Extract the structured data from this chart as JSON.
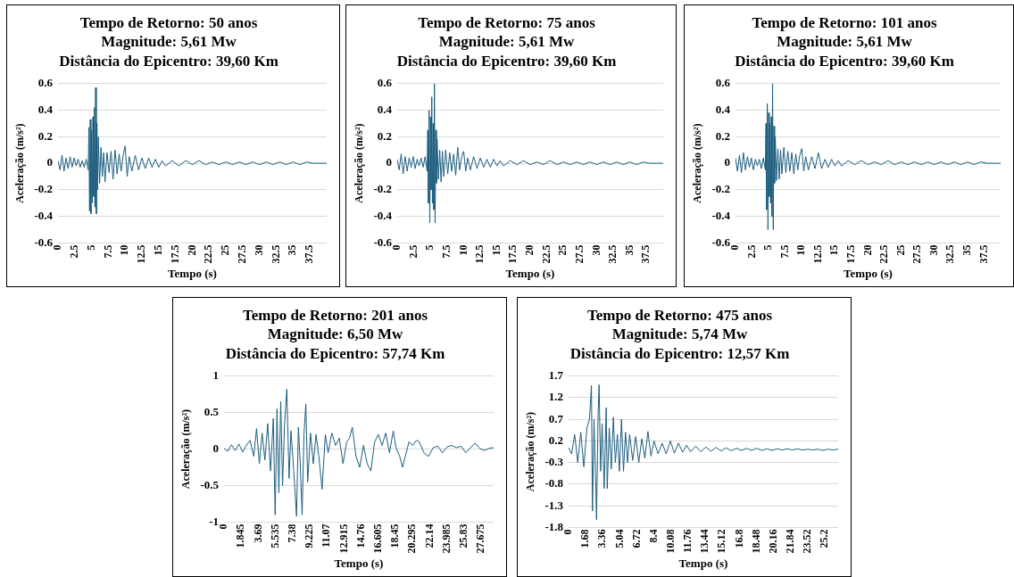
{
  "chart_data": [
    {
      "type": "line",
      "title": "Tempo de Retorno: 50 anos\nMagnitude: 5,61 Mw\nDistância do Epicentro: 39,60 Km",
      "xlabel": "Tempo (s)",
      "ylabel": "Aceleração (m/s²)",
      "xlim": [
        0,
        40
      ],
      "xticks": [
        0,
        2.5,
        5,
        7.5,
        10,
        12.5,
        15,
        17.5,
        20,
        22.5,
        25,
        27.5,
        30,
        32.5,
        35,
        37.5
      ],
      "ylim": [
        -0.6,
        0.6
      ],
      "yticks": [
        -0.6,
        -0.4,
        -0.2,
        0,
        0.2,
        0.4,
        0.6
      ],
      "grid": "y",
      "legend": false,
      "series": [
        {
          "color": "#1d5e7e",
          "x": [
            0,
            0.3,
            0.6,
            0.9,
            1.2,
            1.5,
            1.8,
            2.1,
            2.4,
            2.7,
            3,
            3.3,
            3.6,
            3.9,
            4.2,
            4.5,
            4.6,
            4.7,
            4.8,
            4.9,
            5,
            5.1,
            5.2,
            5.3,
            5.4,
            5.5,
            5.6,
            5.7,
            5.8,
            5.9,
            6,
            6.2,
            6.4,
            6.6,
            6.8,
            7,
            7.3,
            7.6,
            7.9,
            8.2,
            8.5,
            8.8,
            9.1,
            9.4,
            9.7,
            10,
            10.3,
            10.6,
            11,
            11.5,
            12,
            12.5,
            13,
            13.5,
            14,
            14.5,
            15,
            15.5,
            16,
            17,
            18,
            19,
            20,
            21,
            22,
            23,
            24,
            25,
            26,
            27,
            28,
            29,
            30,
            31,
            32,
            33,
            34,
            35,
            36,
            37,
            38,
            39,
            40
          ],
          "values": [
            0.02,
            -0.05,
            0.06,
            -0.06,
            0.04,
            -0.04,
            0.05,
            -0.03,
            0.04,
            -0.02,
            0.03,
            -0.03,
            0.02,
            -0.03,
            0.03,
            -0.05,
            0.27,
            -0.36,
            0.33,
            -0.38,
            0.25,
            -0.3,
            0.35,
            -0.25,
            0.42,
            -0.33,
            0.57,
            -0.38,
            0.3,
            -0.2,
            0.2,
            -0.15,
            0.12,
            -0.1,
            0.08,
            -0.14,
            0.08,
            -0.07,
            0.09,
            -0.12,
            0.1,
            -0.08,
            0.07,
            -0.06,
            0.06,
            0.13,
            -0.1,
            0.05,
            -0.06,
            0.06,
            -0.05,
            0.04,
            -0.04,
            0.04,
            -0.03,
            0.03,
            -0.03,
            0.02,
            -0.02,
            0.02,
            -0.02,
            0.02,
            -0.01,
            0.02,
            -0.01,
            0.01,
            -0.01,
            0.01,
            -0.01,
            0.01,
            -0.01,
            0.01,
            -0.01,
            0.01,
            -0.01,
            0.01,
            -0.01,
            0.01,
            -0.01,
            0.01,
            0,
            0,
            0
          ]
        }
      ]
    },
    {
      "type": "line",
      "title": "Tempo de Retorno: 75 anos\nMagnitude: 5,61 Mw\nDistância do Epicentro: 39,60 Km",
      "xlabel": "Tempo (s)",
      "ylabel": "Aceleração (m/s²)",
      "xlim": [
        0,
        40
      ],
      "xticks": [
        0,
        2.5,
        5,
        7.5,
        10,
        12.5,
        15,
        17.5,
        20,
        22.5,
        25,
        27.5,
        30,
        32.5,
        35,
        37.5
      ],
      "ylim": [
        -0.6,
        0.6
      ],
      "yticks": [
        -0.6,
        -0.4,
        -0.2,
        0,
        0.2,
        0.4,
        0.6
      ],
      "grid": "y",
      "legend": false,
      "series": [
        {
          "color": "#1d5e7e",
          "x": [
            0,
            0.3,
            0.6,
            0.9,
            1.2,
            1.5,
            1.8,
            2.1,
            2.4,
            2.7,
            3,
            3.3,
            3.6,
            3.9,
            4.2,
            4.5,
            4.6,
            4.7,
            4.8,
            4.9,
            5,
            5.1,
            5.2,
            5.3,
            5.4,
            5.5,
            5.6,
            5.7,
            5.8,
            5.9,
            6,
            6.2,
            6.4,
            6.6,
            6.8,
            7,
            7.3,
            7.6,
            7.9,
            8.2,
            8.5,
            8.8,
            9.1,
            9.4,
            9.7,
            10,
            10.3,
            10.6,
            11,
            11.5,
            12,
            12.5,
            13,
            13.5,
            14,
            14.5,
            15,
            15.5,
            16,
            17,
            18,
            19,
            20,
            21,
            22,
            23,
            24,
            25,
            26,
            27,
            28,
            29,
            30,
            31,
            32,
            33,
            34,
            35,
            36,
            37,
            38,
            39,
            40
          ],
          "values": [
            0.03,
            -0.05,
            0.07,
            -0.08,
            0.05,
            -0.06,
            0.04,
            -0.03,
            0.05,
            -0.04,
            0.03,
            -0.02,
            0.04,
            -0.03,
            0.05,
            -0.06,
            0.25,
            -0.3,
            0.4,
            -0.45,
            0.35,
            -0.2,
            0.5,
            -0.3,
            0.3,
            -0.35,
            0.6,
            -0.45,
            0.25,
            -0.15,
            0.18,
            -0.12,
            0.1,
            -0.14,
            0.09,
            -0.1,
            0.1,
            -0.08,
            0.08,
            -0.06,
            0.07,
            -0.09,
            0.12,
            -0.05,
            0.05,
            0.09,
            -0.06,
            0.04,
            -0.05,
            0.05,
            -0.04,
            0.04,
            -0.03,
            0.03,
            -0.03,
            0.03,
            -0.02,
            0.02,
            -0.02,
            0.02,
            -0.01,
            0.02,
            -0.01,
            0.01,
            -0.01,
            0.02,
            -0.01,
            0.01,
            -0.01,
            0.01,
            -0.01,
            0.01,
            -0.01,
            0.01,
            -0.01,
            0.01,
            -0.01,
            0.01,
            -0.01,
            0.01,
            0,
            0,
            0
          ]
        }
      ]
    },
    {
      "type": "line",
      "title": "Tempo de Retorno: 101 anos\nMagnitude: 5,61 Mw\nDistância do Epicentro: 39,60 Km",
      "xlabel": "Tempo (s)",
      "ylabel": "Aceleração (m/s²)",
      "xlim": [
        0,
        40
      ],
      "xticks": [
        0,
        2.5,
        5,
        7.5,
        10,
        12.5,
        15,
        17.5,
        20,
        22.5,
        25,
        27.5,
        30,
        32.5,
        35,
        37.5
      ],
      "ylim": [
        -0.6,
        0.6
      ],
      "yticks": [
        -0.6,
        -0.4,
        -0.2,
        0,
        0.2,
        0.4,
        0.6
      ],
      "grid": "y",
      "legend": false,
      "series": [
        {
          "color": "#1d5e7e",
          "x": [
            0,
            0.3,
            0.6,
            0.9,
            1.2,
            1.5,
            1.8,
            2.1,
            2.4,
            2.7,
            3,
            3.3,
            3.6,
            3.9,
            4.2,
            4.5,
            4.6,
            4.7,
            4.8,
            4.9,
            5,
            5.1,
            5.2,
            5.3,
            5.4,
            5.5,
            5.6,
            5.7,
            5.8,
            5.9,
            6,
            6.2,
            6.4,
            6.6,
            6.8,
            7,
            7.3,
            7.6,
            7.9,
            8.2,
            8.5,
            8.8,
            9.1,
            9.4,
            9.7,
            10,
            10.3,
            10.6,
            11,
            11.5,
            12,
            12.5,
            13,
            13.5,
            14,
            14.5,
            15,
            15.5,
            16,
            17,
            18,
            19,
            20,
            21,
            22,
            23,
            24,
            25,
            26,
            27,
            28,
            29,
            30,
            31,
            32,
            33,
            34,
            35,
            36,
            37,
            38,
            39,
            40
          ],
          "values": [
            0.04,
            -0.06,
            0.06,
            -0.07,
            0.08,
            -0.05,
            0.05,
            -0.03,
            0.04,
            -0.05,
            0.03,
            -0.02,
            0.03,
            -0.04,
            0.04,
            -0.05,
            0.3,
            -0.35,
            0.45,
            -0.5,
            0.38,
            -0.25,
            0.3,
            -0.3,
            0.35,
            -0.4,
            0.6,
            -0.5,
            0.28,
            -0.15,
            0.2,
            -0.13,
            0.11,
            -0.12,
            0.1,
            -0.08,
            0.12,
            -0.07,
            0.09,
            -0.06,
            0.08,
            -0.08,
            0.07,
            -0.05,
            0.06,
            0.11,
            -0.06,
            0.05,
            -0.05,
            0.05,
            -0.04,
            0.08,
            -0.04,
            0.03,
            -0.03,
            0.03,
            -0.02,
            0.02,
            -0.02,
            0.02,
            -0.01,
            0.02,
            -0.01,
            0.01,
            -0.01,
            0.02,
            -0.01,
            0.01,
            -0.01,
            0.01,
            -0.01,
            0.01,
            -0.01,
            0.01,
            -0.01,
            0.01,
            -0.01,
            0.01,
            -0.01,
            0.01,
            0,
            0,
            0
          ]
        }
      ]
    },
    {
      "type": "line",
      "title": "Tempo de Retorno: 201 anos\nMagnitude: 6,50 Mw\nDistância do Epicentro: 57,74 Km",
      "xlabel": "Tempo (s)",
      "ylabel": "Aceleração (m/s²)",
      "xlim": [
        0,
        29
      ],
      "xticks": [
        0,
        1.845,
        3.69,
        5.535,
        7.38,
        9.225,
        11.07,
        12.915,
        14.76,
        16.605,
        18.45,
        20.295,
        22.14,
        23.985,
        25.83,
        27.675
      ],
      "ylim": [
        -1,
        1
      ],
      "yticks": [
        -1,
        -0.5,
        0,
        0.5,
        1
      ],
      "grid": "y",
      "legend": false,
      "series": [
        {
          "color": "#1d5e7e",
          "x": [
            0,
            0.4,
            0.8,
            1.2,
            1.6,
            2,
            2.4,
            2.8,
            3.2,
            3.5,
            3.8,
            4.1,
            4.4,
            4.7,
            5,
            5.3,
            5.5,
            5.7,
            5.9,
            6.1,
            6.3,
            6.5,
            6.75,
            7,
            7.2,
            7.5,
            7.8,
            8,
            8.2,
            8.4,
            8.6,
            8.8,
            9,
            9.3,
            9.6,
            9.9,
            10.2,
            10.55,
            10.9,
            11.2,
            11.6,
            12,
            12.4,
            12.8,
            13.2,
            13.5,
            13.8,
            14.2,
            14.6,
            15,
            15.4,
            15.8,
            16.2,
            16.6,
            17,
            17.4,
            17.8,
            18.2,
            18.5,
            18.9,
            19.2,
            19.5,
            19.9,
            20.3,
            20.7,
            21,
            21.5,
            22,
            22.5,
            23,
            23.5,
            24,
            24.5,
            25,
            25.5,
            26,
            26.5,
            27,
            27.5,
            28,
            28.5,
            29
          ],
          "values": [
            0.01,
            -0.03,
            0.06,
            -0.02,
            0.07,
            -0.04,
            0.05,
            0.12,
            -0.1,
            0.28,
            -0.2,
            0.22,
            -0.15,
            0.35,
            -0.3,
            0.42,
            -0.9,
            0.55,
            -0.6,
            0.65,
            -0.5,
            0.3,
            0.82,
            -0.4,
            0.25,
            -0.3,
            -0.92,
            0.3,
            -0.2,
            -0.9,
            0.2,
            0.62,
            -0.45,
            0.22,
            -0.2,
            0.2,
            -0.1,
            -0.55,
            0.2,
            -0.05,
            0.22,
            0.05,
            0.15,
            -0.2,
            0.1,
            0.15,
            0.3,
            -0.1,
            -0.25,
            0.05,
            -0.2,
            -0.3,
            0.1,
            0.2,
            0.05,
            0.22,
            -0.05,
            0.25,
            0.02,
            -0.1,
            -0.25,
            -0.1,
            0.1,
            0.05,
            0.12,
            0.1,
            -0.05,
            -0.1,
            0.02,
            0.04,
            -0.05,
            0.03,
            0.05,
            0.02,
            0.04,
            -0.05,
            0.02,
            0.08,
            0.01,
            -0.02,
            0.01,
            0.02
          ]
        }
      ]
    },
    {
      "type": "line",
      "title": "Tempo de Retorno: 475 anos\nMagnitude: 5,74 Mw\nDistância do Epicentro: 12,57 Km",
      "xlabel": "Tempo (s)",
      "ylabel": "Aceleração (m/s²)",
      "xlim": [
        0,
        26.5
      ],
      "xticks": [
        0,
        1.68,
        3.36,
        5.04,
        6.72,
        8.4,
        10.08,
        11.76,
        13.44,
        15.12,
        16.8,
        18.48,
        20.16,
        21.84,
        23.52,
        25.2
      ],
      "ylim": [
        -1.8,
        1.7
      ],
      "yticks": [
        -1.8,
        -1.3,
        -0.8,
        -0.3,
        0.2,
        0.7,
        1.2,
        1.7
      ],
      "grid": "y",
      "legend": false,
      "series": [
        {
          "color": "#1d5e7e",
          "x": [
            0,
            0.3,
            0.6,
            0.9,
            1.2,
            1.5,
            1.8,
            2.05,
            2.25,
            2.35,
            2.5,
            2.65,
            2.75,
            2.9,
            3,
            3.15,
            3.3,
            3.5,
            3.7,
            3.8,
            4,
            4.2,
            4.4,
            4.6,
            4.8,
            5,
            5.2,
            5.4,
            5.6,
            5.8,
            6,
            6.3,
            6.6,
            6.9,
            7.2,
            7.5,
            7.8,
            8.1,
            8.4,
            8.8,
            9.2,
            9.6,
            10,
            10.4,
            10.8,
            11.2,
            11.6,
            12,
            12.5,
            13,
            13.5,
            14,
            14.5,
            15,
            15.5,
            16,
            16.5,
            17,
            17.5,
            18,
            18.5,
            19,
            19.5,
            20,
            20.5,
            21,
            21.5,
            22,
            22.5,
            23,
            23.5,
            24,
            24.5,
            25,
            25.5,
            26,
            26.5
          ],
          "values": [
            0.05,
            -0.1,
            0.35,
            -0.3,
            0.4,
            -0.4,
            0.5,
            0.7,
            1.48,
            -1.42,
            0.7,
            -0.6,
            -1.62,
            0.8,
            1.5,
            -0.5,
            0.6,
            -0.9,
            0.97,
            -0.9,
            0.5,
            -0.45,
            0.75,
            -0.3,
            0.35,
            -0.5,
            0.7,
            -0.5,
            0.4,
            -0.3,
            0.35,
            -0.25,
            0.3,
            -0.3,
            0.25,
            -0.2,
            0.42,
            -0.15,
            0.2,
            -0.1,
            0.15,
            -0.1,
            0.2,
            -0.08,
            0.15,
            -0.06,
            0.1,
            -0.05,
            0.08,
            -0.05,
            0.06,
            -0.04,
            0.05,
            -0.03,
            0.04,
            -0.03,
            0.03,
            -0.02,
            0.03,
            -0.02,
            0.03,
            -0.02,
            0.02,
            -0.02,
            0.02,
            -0.01,
            0.02,
            -0.01,
            0.02,
            -0.01,
            0.01,
            -0.01,
            0.01,
            -0.02,
            0.01,
            -0.01,
            0.01
          ]
        }
      ]
    }
  ]
}
